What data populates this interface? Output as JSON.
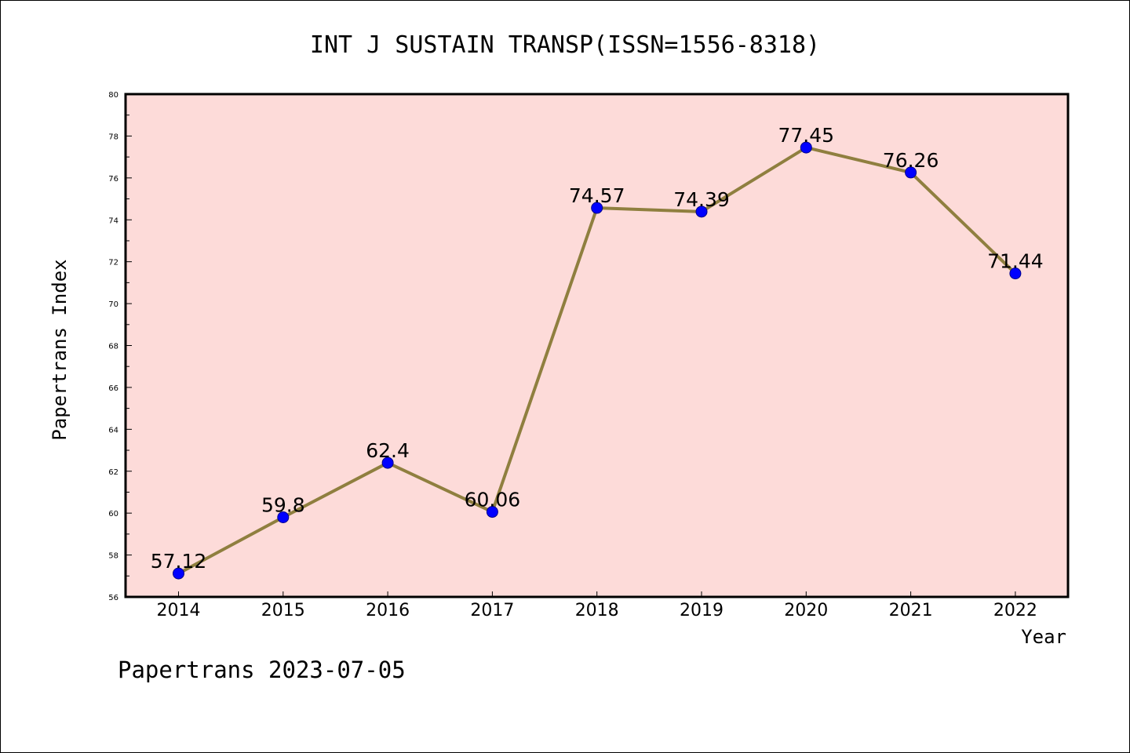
{
  "chart_data": {
    "type": "line",
    "title": "INT J SUSTAIN TRANSP(ISSN=1556-8318)",
    "xlabel": "Year",
    "ylabel": "Papertrans Index",
    "categories": [
      "2014",
      "2015",
      "2016",
      "2017",
      "2018",
      "2019",
      "2020",
      "2021",
      "2022"
    ],
    "series": [
      {
        "name": "Papertrans Index",
        "values": [
          57.12,
          59.8,
          62.4,
          60.06,
          74.57,
          74.39,
          77.45,
          76.26,
          71.44
        ],
        "labels": [
          "57.12",
          "59.8",
          "62.4",
          "60.06",
          "74.57",
          "74.39",
          "77.45",
          "76.26",
          "71.44"
        ]
      }
    ],
    "ylim": [
      56,
      80
    ],
    "yticks": [
      "56",
      "58",
      "60",
      "62",
      "64",
      "66",
      "68",
      "70",
      "72",
      "74",
      "76",
      "78",
      "80"
    ],
    "grid": false,
    "colors": {
      "background": "#fddbd9",
      "line": "#8f7f3f",
      "marker": "#0000ff"
    }
  },
  "footer": "Papertrans 2023-07-05"
}
